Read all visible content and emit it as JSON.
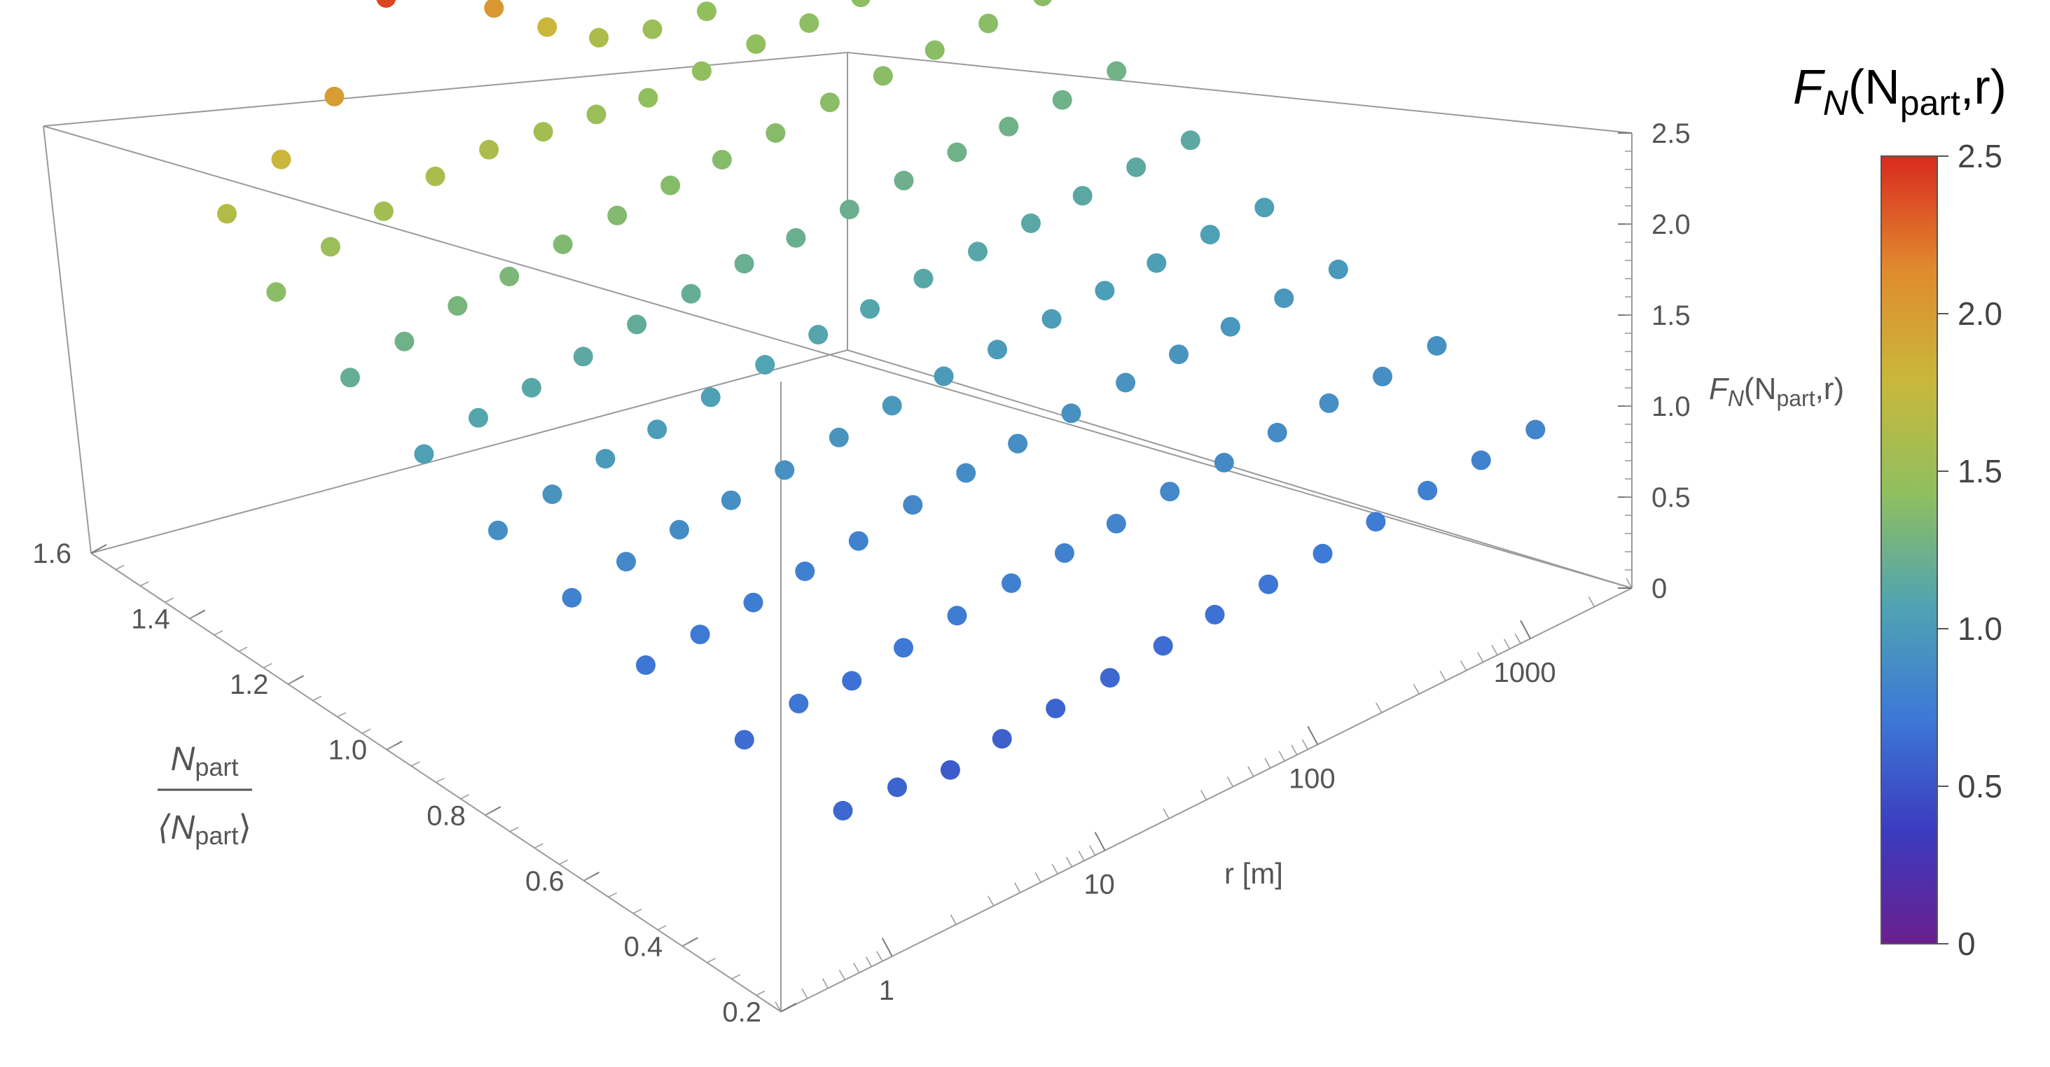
{
  "chart_data": {
    "type": "scatter3d",
    "title": "",
    "axes": {
      "x": {
        "label_numerator_main": "N",
        "label_numerator_sub": "part",
        "label_denominator_main": "⟨N",
        "label_denominator_sub": "part",
        "label_denominator_close": "⟩",
        "range": [
          0.2,
          1.6
        ],
        "ticks": [
          "1.6",
          "1.4",
          "1.2",
          "1.0",
          "0.8",
          "0.6",
          "0.4",
          "0.2"
        ]
      },
      "y": {
        "label": "r [m]",
        "scale": "log",
        "range": [
          0.3,
          3000
        ],
        "ticks": [
          "1",
          "10",
          "100",
          "1000"
        ]
      },
      "z": {
        "label_main": "F",
        "label_sub1": "N",
        "label_mid": "(N",
        "label_sub2": "part",
        "label_end": ",r)",
        "range": [
          0,
          2.5
        ],
        "ticks": [
          "0",
          "0.5",
          "1.0",
          "1.5",
          "2.0",
          "2.5"
        ]
      }
    },
    "colorbar": {
      "title_main": "F",
      "title_sub1": "N",
      "title_mid": "(N",
      "title_sub2": "part",
      "title_end": ",r)",
      "range": [
        0,
        2.5
      ],
      "ticks": [
        "0",
        "0.5",
        "1.0",
        "1.5",
        "2.0",
        "2.5"
      ],
      "colors": [
        "#6a1f8e",
        "#3b3bbf",
        "#3d78d6",
        "#4fa3b3",
        "#8fbf5f",
        "#c9b83a",
        "#e08a2e",
        "#d92a1e"
      ]
    },
    "y_values": [
      1,
      1.8,
      3.2,
      5.6,
      10,
      18,
      32,
      56,
      100,
      180,
      320,
      560,
      1000,
      1800
    ],
    "series": [
      {
        "x": 0.3,
        "values": [
          0.62,
          0.6,
          0.55,
          0.58,
          0.6,
          0.62,
          0.65,
          0.68,
          0.7,
          0.72,
          0.75,
          0.78,
          0.8,
          0.82
        ]
      },
      {
        "x": 0.5,
        "values": [
          0.65,
          0.7,
          0.68,
          0.72,
          0.75,
          0.78,
          0.8,
          0.82,
          0.85,
          0.86,
          0.88,
          0.9,
          0.9,
          0.92
        ]
      },
      {
        "x": 0.7,
        "values": [
          0.7,
          0.72,
          0.75,
          0.78,
          0.8,
          0.85,
          0.88,
          0.9,
          0.92,
          0.94,
          0.95,
          0.96,
          0.97,
          0.98
        ]
      },
      {
        "x": 0.85,
        "values": [
          0.8,
          0.85,
          0.88,
          0.9,
          0.92,
          0.95,
          0.98,
          1.0,
          1.0,
          1.02,
          1.03,
          1.04,
          1.05,
          1.05
        ]
      },
      {
        "x": 1.0,
        "values": [
          0.9,
          0.95,
          1.0,
          1.02,
          1.05,
          1.08,
          1.1,
          1.1,
          1.12,
          1.12,
          1.13,
          1.14,
          1.15,
          1.15
        ]
      },
      {
        "x": 1.15,
        "values": [
          1.05,
          1.1,
          1.12,
          1.15,
          1.18,
          1.2,
          1.22,
          1.22,
          1.23,
          1.24,
          1.25,
          1.25,
          1.25,
          1.26
        ]
      },
      {
        "x": 1.3,
        "values": [
          1.2,
          1.25,
          1.3,
          1.32,
          1.35,
          1.36,
          1.38,
          1.38,
          1.38,
          1.4,
          1.4,
          1.4,
          1.4,
          1.4
        ]
      },
      {
        "x": 1.45,
        "values": [
          1.4,
          1.5,
          1.55,
          1.6,
          1.6,
          1.55,
          1.5,
          1.45,
          1.45,
          1.45,
          1.42,
          1.42,
          1.4,
          1.4
        ]
      },
      {
        "x": 1.55,
        "values": [
          1.65,
          1.8,
          2.0,
          2.4,
          2.4,
          2.05,
          1.8,
          1.6,
          1.5,
          1.45,
          1.45,
          1.42,
          1.4,
          1.4
        ]
      }
    ]
  }
}
